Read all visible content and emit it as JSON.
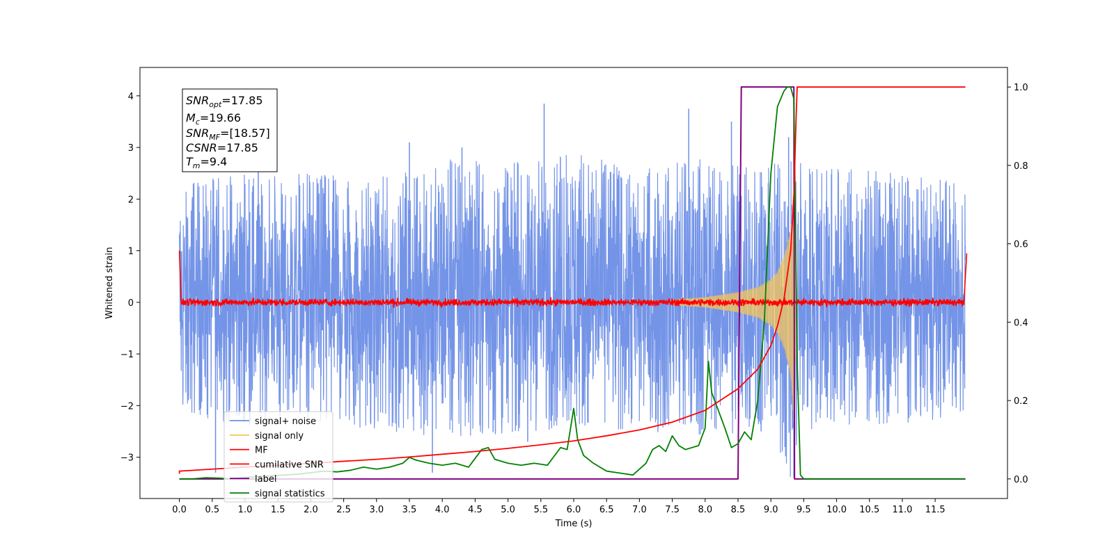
{
  "chart_data": {
    "type": "line",
    "xlabel": "Time (s)",
    "ylabel": "Whitened strain",
    "xlim": [
      -0.6,
      12.6
    ],
    "ylim": [
      -3.8,
      4.55
    ],
    "y2lim": [
      -0.05,
      1.05
    ],
    "x_ticks": [
      "0.0",
      "0.5",
      "1.0",
      "1.5",
      "2.0",
      "2.5",
      "3.0",
      "3.5",
      "4.0",
      "4.5",
      "5.0",
      "5.5",
      "6.0",
      "6.5",
      "7.0",
      "7.5",
      "8.0",
      "8.5",
      "9.0",
      "9.5",
      "10.0",
      "10.5",
      "11.0",
      "11.5"
    ],
    "y_ticks": [
      "−3",
      "−2",
      "−1",
      "0",
      "1",
      "2",
      "3",
      "4"
    ],
    "y2_ticks": [
      "0.0",
      "0.2",
      "0.4",
      "0.6",
      "0.8",
      "1.0"
    ],
    "grid": false,
    "legend_position": "lower left",
    "annotation": {
      "snr_opt": "=17.85",
      "mc": "=19.66",
      "snr_mf": "=[18.57]",
      "csnr": "=17.85",
      "tm": "=9.4"
    },
    "series": [
      {
        "name": "signal+ noise",
        "color": "#6d8ee6",
        "axis": "left",
        "description_values": "noise band, typical envelope ±1.6 to ±2.4, peaks up to 3.85",
        "envelope_x": [
          0.0,
          1.0,
          2.0,
          3.0,
          4.0,
          5.0,
          6.0,
          7.0,
          8.0,
          9.0,
          9.3,
          9.5,
          10.0,
          11.0,
          11.96
        ],
        "envelope_upper": [
          2.3,
          2.5,
          2.5,
          2.4,
          2.8,
          2.7,
          2.9,
          2.6,
          2.8,
          2.7,
          3.0,
          2.6,
          2.6,
          2.5,
          2.3
        ],
        "envelope_lower": [
          -2.2,
          -2.4,
          -2.3,
          -2.5,
          -2.6,
          -2.6,
          -2.4,
          -2.5,
          -2.6,
          -2.5,
          -3.4,
          -2.5,
          -2.4,
          -2.4,
          -2.2
        ],
        "spikes": [
          [
            0.55,
            -3.3
          ],
          [
            1.2,
            3.4
          ],
          [
            3.5,
            3.1
          ],
          [
            3.85,
            -3.3
          ],
          [
            4.3,
            3.0
          ],
          [
            5.55,
            3.85
          ],
          [
            5.3,
            -2.7
          ],
          [
            7.75,
            3.75
          ],
          [
            8.4,
            3.5
          ],
          [
            9.35,
            -3.4
          ],
          [
            9.27,
            3.2
          ]
        ]
      },
      {
        "name": "signal only",
        "color": "#f5c55a",
        "axis": "left",
        "chirp_x": [
          7.5,
          8.0,
          8.5,
          8.8,
          9.0,
          9.1,
          9.2,
          9.3,
          9.35,
          9.4
        ],
        "chirp_amp": [
          0.05,
          0.1,
          0.2,
          0.3,
          0.45,
          0.6,
          0.9,
          1.4,
          2.4,
          0.0
        ]
      },
      {
        "name": "MF",
        "color": "#ff0000",
        "axis": "left",
        "x": [
          0.0,
          0.02,
          0.04,
          11.96,
          11.98
        ],
        "y": [
          1.0,
          0.0,
          0.0,
          0.0,
          0.95
        ],
        "noise_amplitude": 0.06
      },
      {
        "name": "cumilative SNR",
        "color": "#ff0000",
        "axis": "right",
        "x": [
          0.0,
          0.5,
          1.0,
          1.5,
          2.0,
          2.5,
          3.0,
          3.5,
          4.0,
          4.5,
          5.0,
          5.5,
          6.0,
          6.5,
          7.0,
          7.5,
          8.0,
          8.5,
          8.8,
          9.0,
          9.1,
          9.2,
          9.3,
          9.35,
          9.38,
          9.4,
          10.0,
          11.0,
          11.96
        ],
        "y": [
          0.02,
          0.025,
          0.03,
          0.035,
          0.04,
          0.045,
          0.05,
          0.056,
          0.063,
          0.07,
          0.078,
          0.087,
          0.097,
          0.11,
          0.125,
          0.145,
          0.175,
          0.23,
          0.28,
          0.34,
          0.39,
          0.46,
          0.58,
          0.72,
          0.9,
          1.0,
          1.0,
          1.0,
          1.0
        ]
      },
      {
        "name": "label",
        "color": "#800080",
        "axis": "right",
        "x": [
          0.0,
          8.5,
          8.55,
          9.35,
          9.36,
          9.4,
          11.96
        ],
        "y": [
          0.0,
          0.0,
          1.0,
          1.0,
          0.0,
          0.0,
          0.0
        ]
      },
      {
        "name": "signal statistics",
        "color": "#008000",
        "axis": "right",
        "x": [
          0.0,
          0.2,
          0.4,
          0.6,
          0.8,
          1.0,
          1.2,
          1.4,
          1.6,
          1.8,
          2.0,
          2.2,
          2.4,
          2.6,
          2.8,
          3.0,
          3.2,
          3.4,
          3.5,
          3.6,
          3.8,
          4.0,
          4.2,
          4.4,
          4.6,
          4.7,
          4.8,
          5.0,
          5.2,
          5.4,
          5.6,
          5.8,
          5.9,
          6.0,
          6.06,
          6.15,
          6.3,
          6.5,
          6.7,
          6.9,
          7.1,
          7.2,
          7.3,
          7.4,
          7.5,
          7.6,
          7.7,
          7.9,
          8.0,
          8.05,
          8.1,
          8.2,
          8.3,
          8.4,
          8.5,
          8.6,
          8.7,
          8.8,
          8.9,
          9.0,
          9.1,
          9.2,
          9.25,
          9.3,
          9.35,
          9.4,
          9.45,
          9.5,
          10.0,
          11.0,
          11.96
        ],
        "y": [
          0.0,
          0.0,
          0.003,
          0.002,
          0.0,
          0.004,
          0.006,
          0.008,
          0.01,
          0.012,
          0.016,
          0.02,
          0.018,
          0.022,
          0.03,
          0.025,
          0.03,
          0.04,
          0.055,
          0.048,
          0.04,
          0.035,
          0.04,
          0.03,
          0.075,
          0.08,
          0.05,
          0.04,
          0.035,
          0.04,
          0.035,
          0.08,
          0.075,
          0.18,
          0.1,
          0.06,
          0.04,
          0.02,
          0.015,
          0.01,
          0.04,
          0.075,
          0.085,
          0.07,
          0.11,
          0.085,
          0.075,
          0.085,
          0.13,
          0.3,
          0.22,
          0.175,
          0.13,
          0.08,
          0.09,
          0.12,
          0.1,
          0.2,
          0.4,
          0.78,
          0.95,
          0.99,
          1.0,
          1.0,
          0.97,
          0.3,
          0.01,
          0.0,
          0.0,
          0.0,
          0.0
        ]
      }
    ]
  }
}
